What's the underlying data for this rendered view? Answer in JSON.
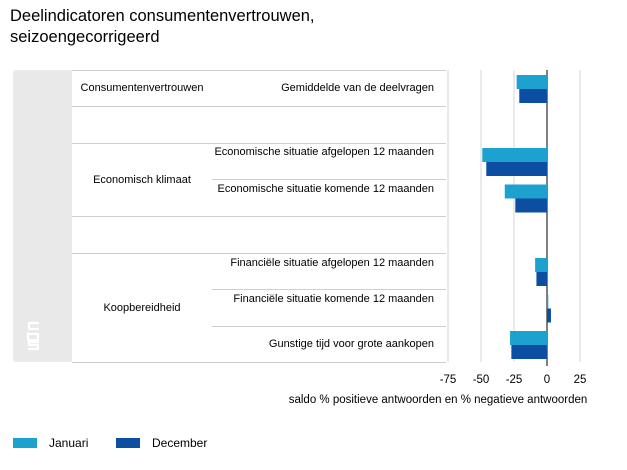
{
  "title": "Deelindicatoren consumentenvertrouwen, seizoengecorrigeerd",
  "table": {
    "rows": [
      {
        "category": "Consumentenvertrouwen",
        "subcategory": "Gemiddelde van de deelvragen"
      },
      {
        "category": "",
        "subcategory": ""
      },
      {
        "category": "Economisch klimaat",
        "subcategory": "Economische situatie afgelopen 12 maanden"
      },
      {
        "category": "",
        "subcategory": "Economische situatie komende 12 maanden"
      },
      {
        "category": "",
        "subcategory": ""
      },
      {
        "category": "Koopbereidheid",
        "subcategory": "Financiële situatie afgelopen 12 maanden"
      },
      {
        "category": "",
        "subcategory": "Financiële situatie komende 12 maanden"
      },
      {
        "category": "",
        "subcategory": "Gunstige tijd voor grote aankopen"
      }
    ]
  },
  "chart_data": {
    "type": "bar",
    "orientation": "horizontal",
    "categories": [
      "Gemiddelde van de deelvragen",
      "",
      "Economische situatie afgelopen 12 maanden",
      "Economische situatie komende 12 maanden",
      "",
      "Financiële situatie afgelopen 12 maanden",
      "Financiële situatie komende 12 maanden",
      "Gunstige tijd voor grote aankopen"
    ],
    "series": [
      {
        "name": "Januari",
        "color": "#1da1cf",
        "values": [
          -23,
          null,
          -49,
          -32,
          null,
          -9,
          1,
          -28
        ]
      },
      {
        "name": "December",
        "color": "#0b4ea2",
        "values": [
          -21,
          null,
          -46,
          -24,
          null,
          -8,
          3,
          -27
        ]
      }
    ],
    "xlabel": "saldo % positieve antwoorden en % negatieve antwoorden",
    "xlim": [
      -75,
      25
    ],
    "xticks": [
      -75,
      -50,
      -25,
      0,
      25
    ],
    "grid": true,
    "legend_position": "bottom-left"
  },
  "legend": {
    "items": [
      {
        "label": "Januari",
        "color": "#1da1cf"
      },
      {
        "label": "December",
        "color": "#0b4ea2"
      }
    ]
  }
}
